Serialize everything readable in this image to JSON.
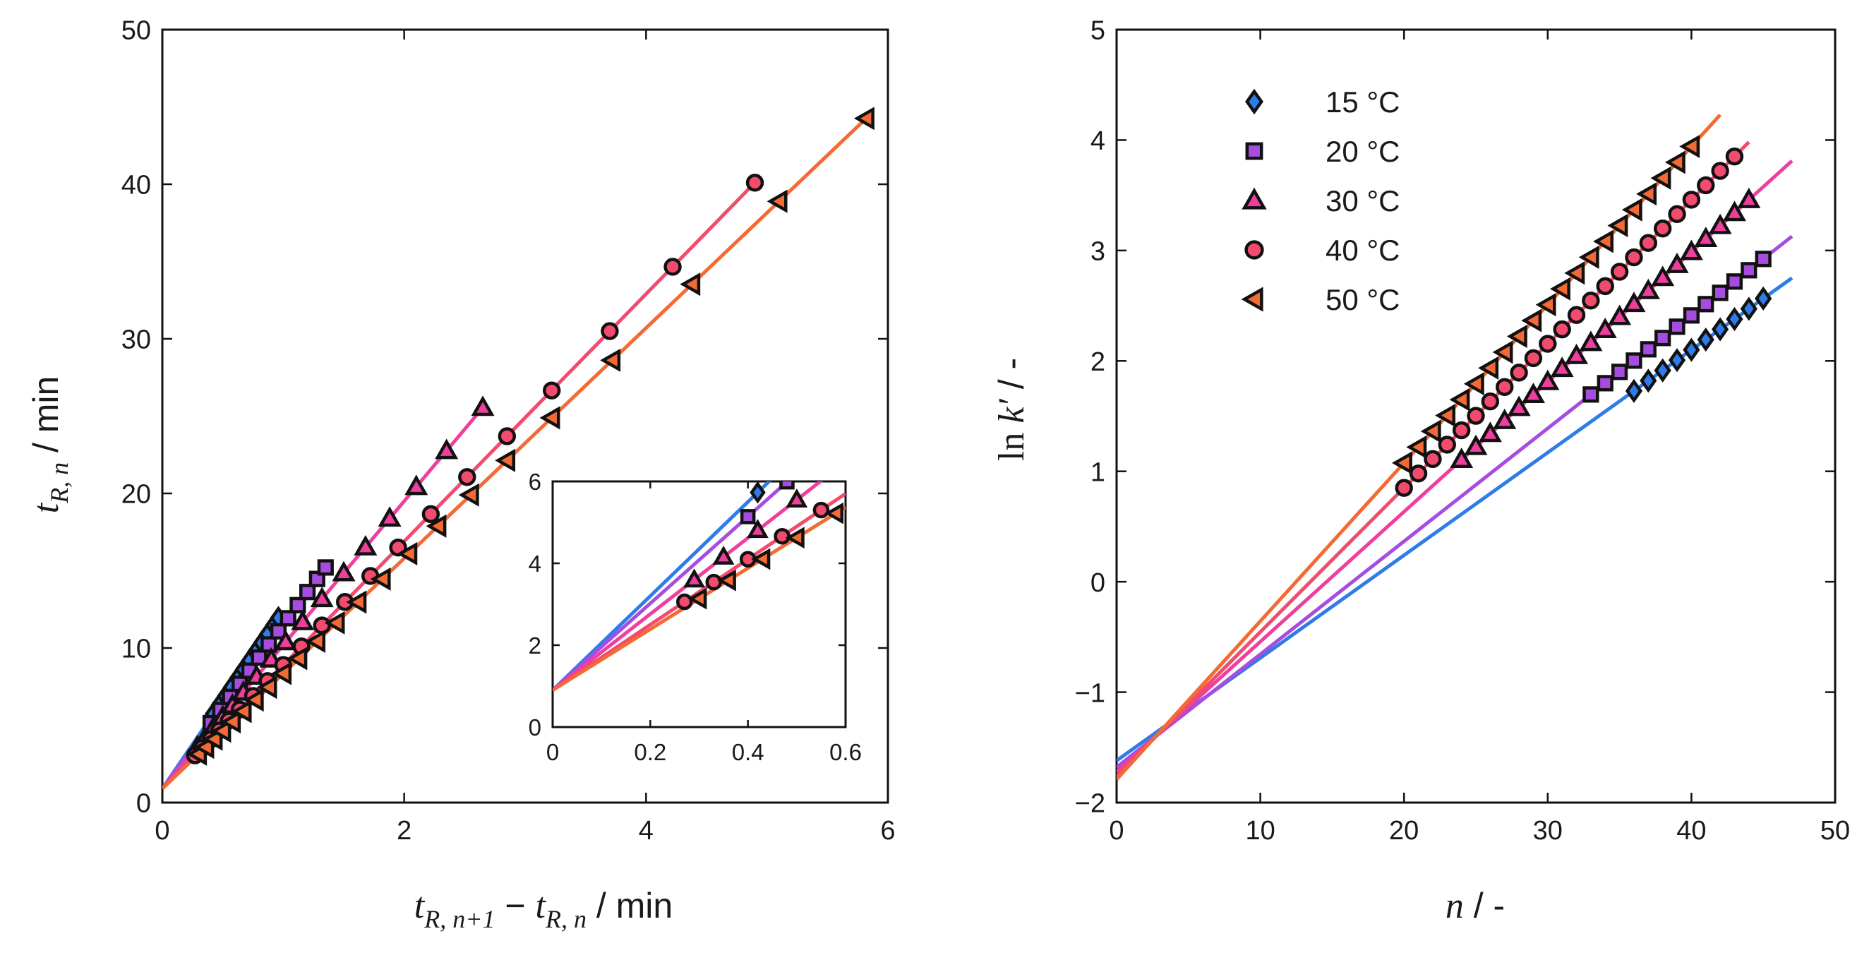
{
  "chart_data": [
    {
      "type": "scatter",
      "name": "left-panel",
      "xlabel": {
        "t1": "t",
        "s1": "R, n+1",
        "minus": " − ",
        "t2": "t",
        "s2": "R, n",
        "unit": " / min"
      },
      "ylabel": {
        "t": "t",
        "s": "R, n",
        "unit": " / min"
      },
      "xlim": [
        0,
        6
      ],
      "ylim": [
        0,
        50
      ],
      "xticks": [
        "0",
        "2",
        "4",
        "6"
      ],
      "yticks": [
        "0",
        "10",
        "20",
        "30",
        "40",
        "50"
      ],
      "xtick_values": [
        0,
        2,
        4,
        6
      ],
      "ytick_values": [
        0,
        10,
        20,
        30,
        40,
        50
      ],
      "intercept": 0.9,
      "series": [
        {
          "label": "15 °C",
          "color": "#2F7BE8",
          "marker": "diamond",
          "slope": 11.5,
          "x": [
            0.42,
            0.47,
            0.52,
            0.57,
            0.62,
            0.67,
            0.72,
            0.77,
            0.82,
            0.87,
            0.92,
            0.96
          ]
        },
        {
          "label": "20 °C",
          "color": "#A64CE0",
          "marker": "square",
          "slope": 10.6,
          "x": [
            0.4,
            0.48,
            0.56,
            0.64,
            0.72,
            0.8,
            0.88,
            0.96,
            1.04,
            1.12,
            1.2,
            1.28,
            1.35
          ]
        },
        {
          "label": "30 °C",
          "color": "#EE3F9E",
          "marker": "triangle-up",
          "slope": 9.3,
          "x": [
            0.29,
            0.35,
            0.42,
            0.5,
            0.58,
            0.67,
            0.78,
            0.9,
            1.02,
            1.16,
            1.32,
            1.5,
            1.68,
            1.88,
            2.1,
            2.35,
            2.65
          ]
        },
        {
          "label": "40 °C",
          "color": "#F24B6E",
          "marker": "circle",
          "slope": 8.0,
          "x": [
            0.27,
            0.33,
            0.4,
            0.47,
            0.55,
            0.64,
            0.75,
            0.87,
            1.0,
            1.15,
            1.32,
            1.51,
            1.72,
            1.95,
            2.22,
            2.52,
            2.85,
            3.22,
            3.7,
            4.22,
            4.9
          ]
        },
        {
          "label": "50 °C",
          "color": "#F46A34",
          "marker": "triangle-left",
          "slope": 7.45,
          "x": [
            0.3,
            0.36,
            0.43,
            0.5,
            0.58,
            0.67,
            0.77,
            0.88,
            1.0,
            1.13,
            1.28,
            1.44,
            1.62,
            1.82,
            2.04,
            2.28,
            2.55,
            2.85,
            3.22,
            3.72,
            4.38,
            5.1,
            5.82
          ]
        }
      ],
      "inset": {
        "xlim": [
          0,
          0.6
        ],
        "ylim": [
          0,
          6
        ],
        "xticks": [
          "0",
          "0.2",
          "0.4",
          "0.6"
        ],
        "yticks": [
          "0",
          "2",
          "4",
          "6"
        ],
        "xtick_values": [
          0,
          0.2,
          0.4,
          0.6
        ],
        "ytick_values": [
          0,
          2,
          4,
          6
        ]
      }
    },
    {
      "type": "scatter",
      "name": "right-panel",
      "xlabel": {
        "n": "n",
        "unit": " / -"
      },
      "ylabel": {
        "ln": "ln",
        "k": "k′",
        "unit": " / -"
      },
      "xlim": [
        0,
        50
      ],
      "ylim": [
        -2,
        5
      ],
      "xticks": [
        "0",
        "10",
        "20",
        "30",
        "40",
        "50"
      ],
      "yticks": [
        "−2",
        "−1",
        "0",
        "1",
        "2",
        "3",
        "4",
        "5"
      ],
      "xtick_values": [
        0,
        10,
        20,
        30,
        40,
        50
      ],
      "ytick_values": [
        -2,
        -1,
        0,
        1,
        2,
        3,
        4,
        5
      ],
      "legend_position": "top-left",
      "series": [
        {
          "label": "15 °C",
          "color": "#2F7BE8",
          "marker": "diamond",
          "intercept": -1.62,
          "slope": 0.093,
          "line_x": [
            0,
            47
          ],
          "n_range": [
            36,
            45
          ]
        },
        {
          "label": "20 °C",
          "color": "#A64CE0",
          "marker": "square",
          "intercept": -1.68,
          "slope": 0.1023,
          "line_x": [
            0,
            47
          ],
          "n_range": [
            33,
            45
          ]
        },
        {
          "label": "30 °C",
          "color": "#EE3F9E",
          "marker": "triangle-up",
          "intercept": -1.72,
          "slope": 0.1177,
          "line_x": [
            0,
            47
          ],
          "n_range": [
            24,
            44
          ]
        },
        {
          "label": "40 °C",
          "color": "#F24B6E",
          "marker": "circle",
          "intercept": -1.76,
          "slope": 0.1305,
          "line_x": [
            0,
            44
          ],
          "n_range": [
            20,
            43
          ]
        },
        {
          "label": "50 °C",
          "color": "#F46A34",
          "marker": "triangle-left",
          "intercept": -1.79,
          "slope": 0.1433,
          "line_x": [
            0,
            42
          ],
          "n_range": [
            20,
            40
          ]
        }
      ]
    }
  ]
}
